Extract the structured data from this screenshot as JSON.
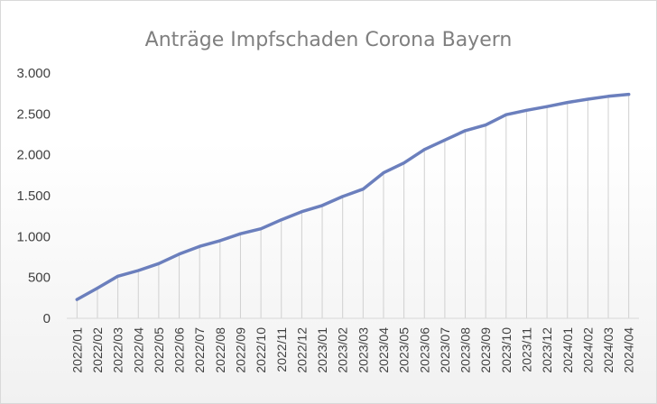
{
  "chart_data": {
    "type": "area",
    "title": "Anträge Impfschaden Corona Bayern",
    "xlabel": "",
    "ylabel": "",
    "ylim": [
      0,
      3000
    ],
    "yticks": [
      0,
      500,
      1000,
      1500,
      2000,
      2500,
      3000
    ],
    "ytick_labels": [
      "0",
      "500",
      "1.000",
      "1.500",
      "2.000",
      "2.500",
      "3.000"
    ],
    "grid": false,
    "legend": "none",
    "categories": [
      "2022/01",
      "2022/02",
      "2022/03",
      "2022/04",
      "2022/05",
      "2022/06",
      "2022/07",
      "2022/08",
      "2022/09",
      "2022/10",
      "2022/11",
      "2022/12",
      "2023/01",
      "2023/02",
      "2023/03",
      "2023/04",
      "2023/05",
      "2023/06",
      "2023/07",
      "2023/08",
      "2023/09",
      "2023/10",
      "2023/11",
      "2023/12",
      "2024/01",
      "2024/02",
      "2024/03",
      "2024/04"
    ],
    "series": [
      {
        "values": [
          230,
          370,
          515,
          585,
          670,
          785,
          880,
          950,
          1035,
          1095,
          1205,
          1305,
          1380,
          1490,
          1580,
          1780,
          1900,
          2065,
          2180,
          2295,
          2365,
          2490,
          2545,
          2590,
          2640,
          2680,
          2715,
          2740
        ]
      }
    ],
    "colors": {
      "line": "#6b7fbd",
      "droplines": "#d0d0d0",
      "axis": "#d9d9d9"
    }
  }
}
